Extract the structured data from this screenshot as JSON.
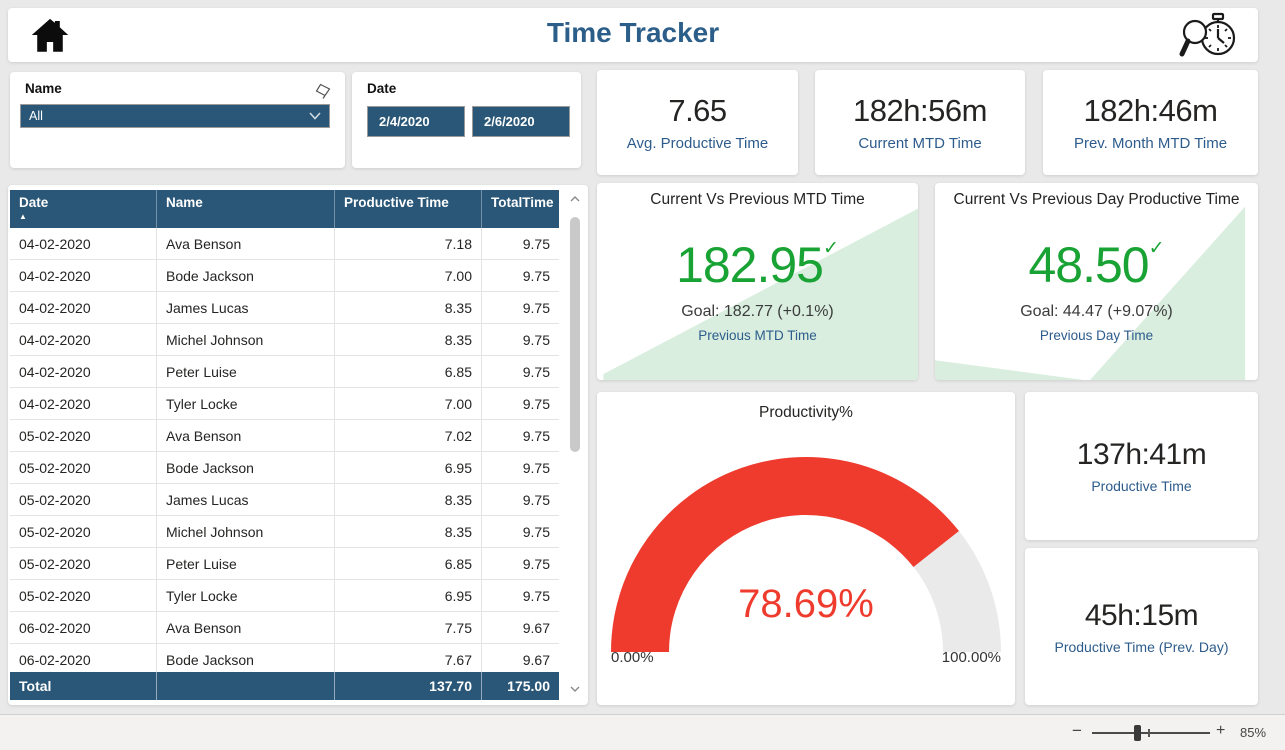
{
  "colors": {
    "accent_blue": "#2A5777",
    "title_blue": "#2B5E88",
    "label_blue": "#2D5C8C",
    "green": "#19A334",
    "light_green": "#D9EEDF",
    "red": "#EF3B2E",
    "gauge_rest": "#EAEAEA"
  },
  "header": {
    "title": "Time Tracker"
  },
  "filters": {
    "name": {
      "label": "Name",
      "value": "All"
    },
    "date": {
      "label": "Date",
      "start": "2/4/2020",
      "end": "2/6/2020"
    }
  },
  "kpis": [
    {
      "value": "7.65",
      "label": "Avg. Productive Time"
    },
    {
      "value": "182h:56m",
      "label": "Current MTD Time"
    },
    {
      "value": "182h:46m",
      "label": "Prev. Month MTD Time"
    }
  ],
  "goal_cards": [
    {
      "title": "Current Vs Previous MTD Time",
      "value": "182.95",
      "goal": "Goal: 182.77 (+0.1%)",
      "sublabel": "Previous MTD Time"
    },
    {
      "title": "Current Vs Previous Day Productive Time",
      "value": "48.50",
      "goal": "Goal: 44.47 (+9.07%)",
      "sublabel": "Previous Day Time"
    }
  ],
  "table": {
    "columns": [
      "Date",
      "Name",
      "Productive Time",
      "TotalTime"
    ],
    "rows": [
      [
        "04-02-2020",
        "Ava Benson",
        "7.18",
        "9.75"
      ],
      [
        "04-02-2020",
        "Bode Jackson",
        "7.00",
        "9.75"
      ],
      [
        "04-02-2020",
        "James Lucas",
        "8.35",
        "9.75"
      ],
      [
        "04-02-2020",
        "Michel Johnson",
        "8.35",
        "9.75"
      ],
      [
        "04-02-2020",
        "Peter Luise",
        "6.85",
        "9.75"
      ],
      [
        "04-02-2020",
        "Tyler Locke",
        "7.00",
        "9.75"
      ],
      [
        "05-02-2020",
        "Ava Benson",
        "7.02",
        "9.75"
      ],
      [
        "05-02-2020",
        "Bode Jackson",
        "6.95",
        "9.75"
      ],
      [
        "05-02-2020",
        "James Lucas",
        "8.35",
        "9.75"
      ],
      [
        "05-02-2020",
        "Michel Johnson",
        "8.35",
        "9.75"
      ],
      [
        "05-02-2020",
        "Peter Luise",
        "6.85",
        "9.75"
      ],
      [
        "05-02-2020",
        "Tyler Locke",
        "6.95",
        "9.75"
      ],
      [
        "06-02-2020",
        "Ava Benson",
        "7.75",
        "9.67"
      ],
      [
        "06-02-2020",
        "Bode Jackson",
        "7.67",
        "9.67"
      ]
    ],
    "total": {
      "label": "Total",
      "productive_time": "137.70",
      "total_time": "175.00"
    }
  },
  "chart_data": {
    "type": "gauge",
    "title": "Productivity%",
    "value": 78.69,
    "min": 0,
    "max": 100,
    "value_label": "78.69%",
    "min_label": "0.00%",
    "max_label": "100.00%"
  },
  "time_cards": [
    {
      "value": "137h:41m",
      "label": "Productive Time"
    },
    {
      "value": "45h:15m",
      "label": "Productive Time (Prev. Day)"
    }
  ],
  "status_bar": {
    "zoom_level": "85%",
    "minus": "−",
    "plus": "+"
  },
  "icons": {
    "sort_ascending": "▲",
    "check": "✓"
  }
}
